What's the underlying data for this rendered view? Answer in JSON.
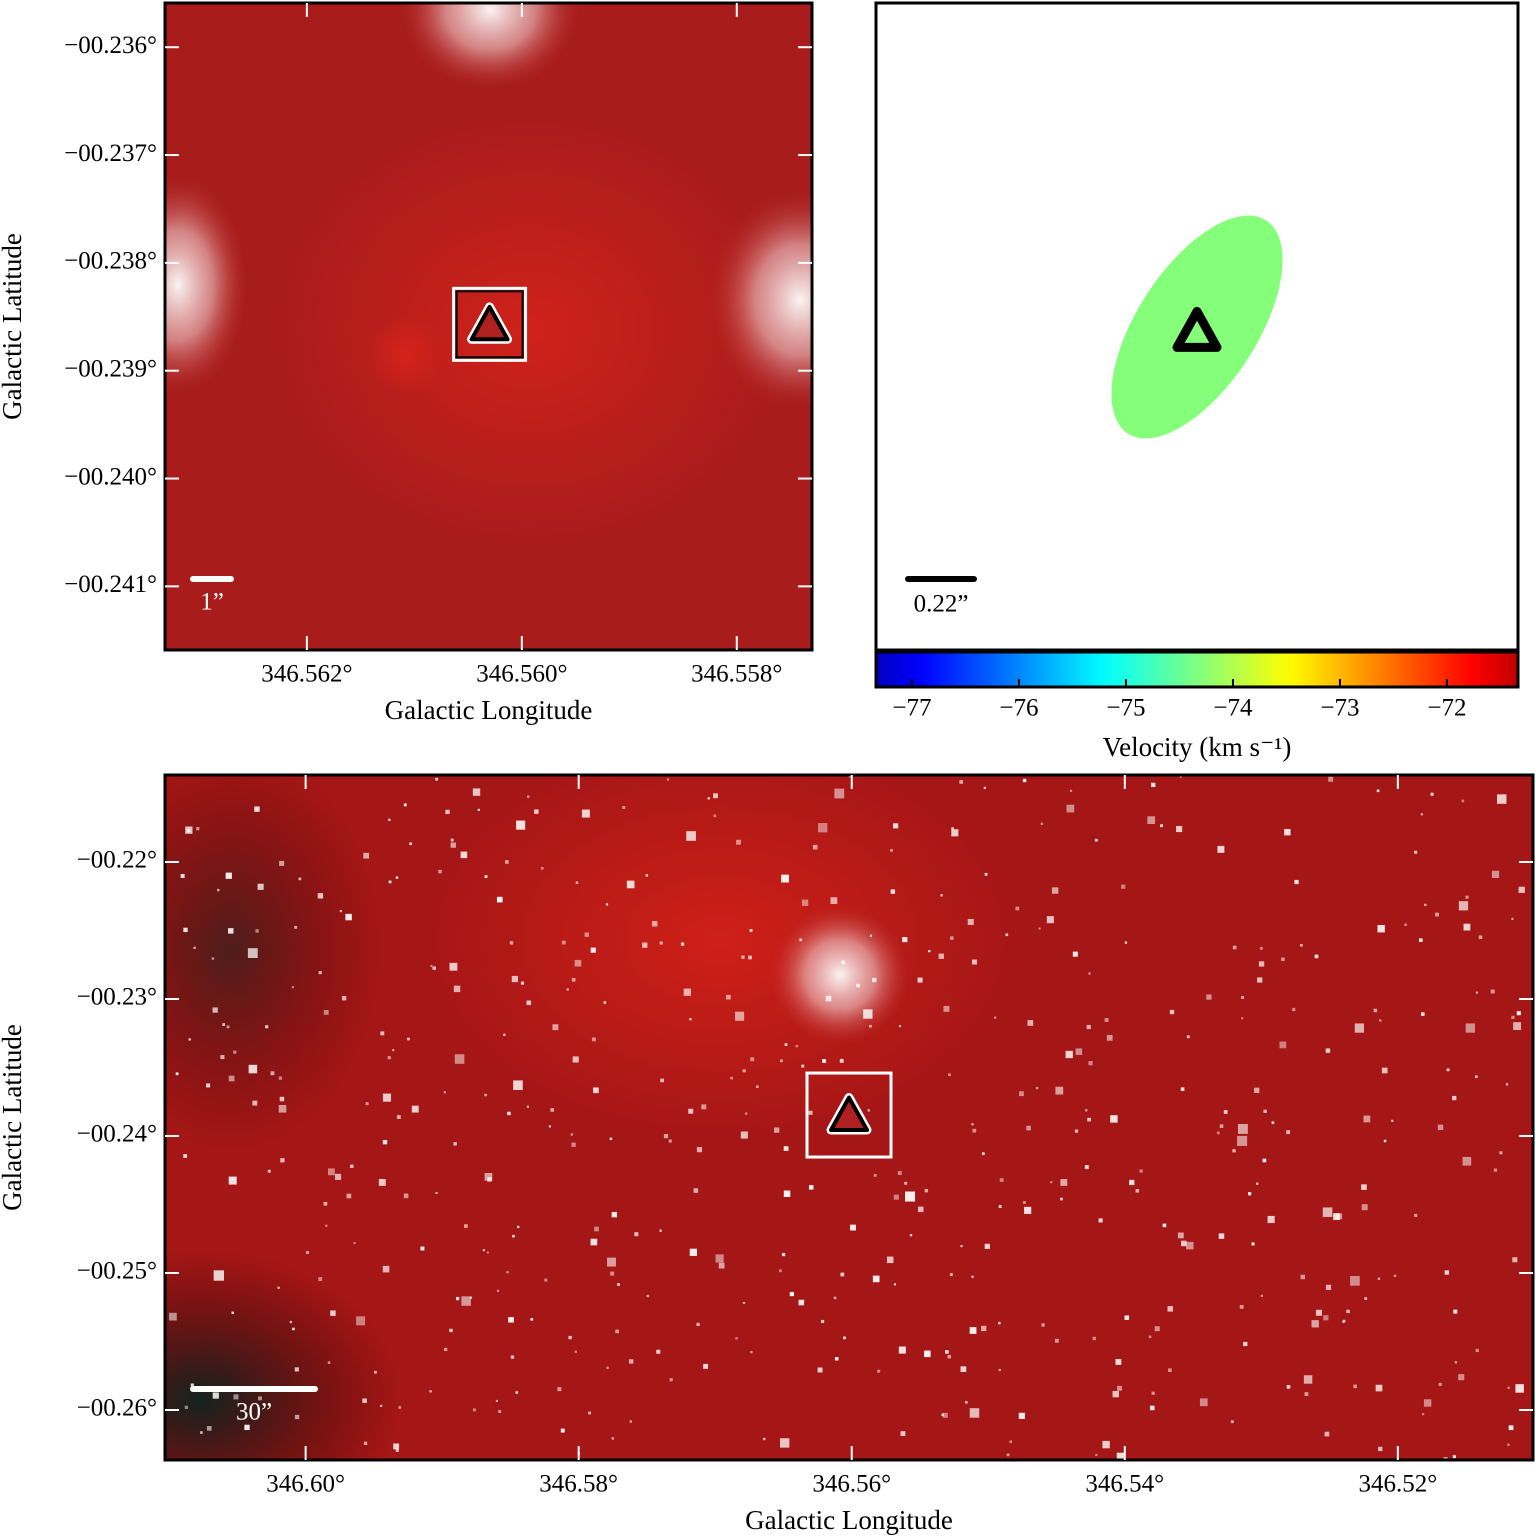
{
  "chart_data": [
    {
      "type": "image",
      "x_label": "Galactic Longitude",
      "y_label": "Galactic Latitude",
      "xlim": [
        346.56332,
        346.5573
      ],
      "ylim": [
        -0.24159,
        -0.23559
      ],
      "xticks": [
        {
          "value": 346.562,
          "label": "346.562°"
        },
        {
          "value": 346.56,
          "label": "346.560°"
        },
        {
          "value": 346.558,
          "label": "346.558°"
        }
      ],
      "yticks": [
        {
          "value": -0.236,
          "label": "−00.236°"
        },
        {
          "value": -0.237,
          "label": "−00.237°"
        },
        {
          "value": -0.238,
          "label": "−00.238°"
        },
        {
          "value": -0.239,
          "label": "−00.239°"
        },
        {
          "value": -0.24,
          "label": "−00.240°"
        },
        {
          "value": -0.241,
          "label": "−00.241°"
        }
      ],
      "x": [
        346.5603
      ],
      "values": [
        -0.23857
      ],
      "scale_bar_label": "1”"
    },
    {
      "type": "ellipse",
      "colorbar_label": "Velocity (km s⁻¹)",
      "colorbar_lim": [
        -77.336,
        -71.336
      ],
      "colorbar_ticks": [
        {
          "value": -77,
          "label": "−77"
        },
        {
          "value": -76,
          "label": "−76"
        },
        {
          "value": -75,
          "label": "−75"
        },
        {
          "value": -74,
          "label": "−74"
        },
        {
          "value": -73,
          "label": "−73"
        },
        {
          "value": -72,
          "label": "−72"
        }
      ],
      "values": [
        -74.3
      ],
      "scale_bar_label": "0.22”"
    },
    {
      "type": "image",
      "x_label": "Galactic Longitude",
      "y_label": "Galactic Latitude",
      "xlim": [
        346.6103,
        346.5101
      ],
      "ylim": [
        -0.26365,
        -0.21365
      ],
      "xticks": [
        {
          "value": 346.6,
          "label": "346.60°"
        },
        {
          "value": 346.58,
          "label": "346.58°"
        },
        {
          "value": 346.56,
          "label": "346.56°"
        },
        {
          "value": 346.54,
          "label": "346.54°"
        },
        {
          "value": 346.52,
          "label": "346.52°"
        }
      ],
      "yticks": [
        {
          "value": -0.22,
          "label": "−00.22°"
        },
        {
          "value": -0.23,
          "label": "−00.23°"
        },
        {
          "value": -0.24,
          "label": "−00.24°"
        },
        {
          "value": -0.25,
          "label": "−00.25°"
        },
        {
          "value": -0.26,
          "label": "−00.26°"
        }
      ],
      "x": [
        346.5602
      ],
      "values": [
        -0.23847
      ],
      "scale_bar_label": "30”"
    }
  ]
}
